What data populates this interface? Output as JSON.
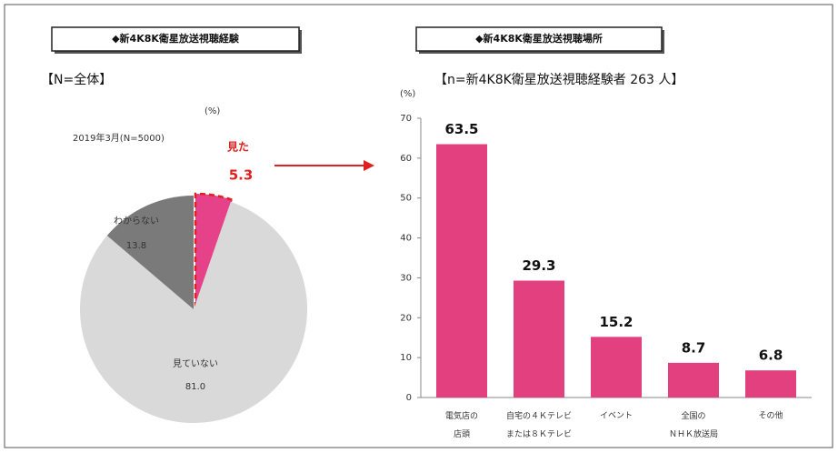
{
  "chart_data": [
    {
      "type": "pie",
      "title": "◆新4K8K衛星放送視聴経験",
      "subtitle": "【N=全体】",
      "unit": "(%)",
      "series_label": "2019年3月(N=5000)",
      "categories": [
        "見た",
        "見ていない",
        "わからない"
      ],
      "values": [
        5.3,
        81.0,
        13.8
      ],
      "value_labels": [
        "5.3",
        "81.0",
        "13.8"
      ],
      "colors": [
        "#e6428a",
        "#d9d9d9",
        "#7a7a7a"
      ]
    },
    {
      "type": "bar",
      "title": "◆新4K8K衛星放送視聴場所",
      "subtitle": "【n=新4K8K衛星放送視聴経験者 263 人】",
      "unit": "(%)",
      "categories": [
        "電気店の\n店頭",
        "自宅の４Ｋテレビ\nまたは８Ｋテレビ",
        "イベント",
        "全国の\nＮＨＫ放送局",
        "その他"
      ],
      "values": [
        63.5,
        29.3,
        15.2,
        8.7,
        6.8
      ],
      "color": "#e2407f",
      "ylim": [
        0,
        70
      ],
      "yticks": [
        0,
        10,
        20,
        30,
        40,
        50,
        60,
        70
      ]
    }
  ]
}
